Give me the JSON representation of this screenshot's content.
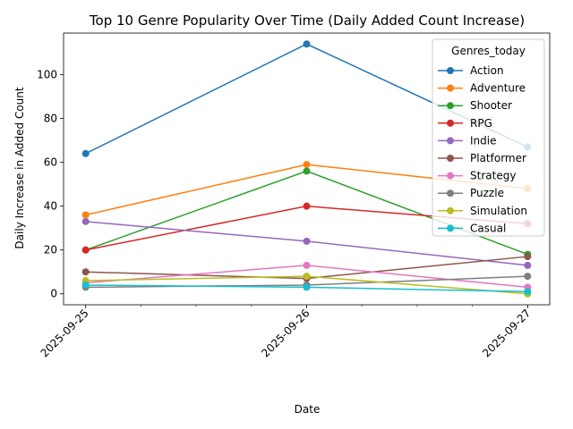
{
  "chart_data": {
    "type": "line",
    "title": "Top 10 Genre Popularity Over Time (Daily Added Count Increase)",
    "xlabel": "Date",
    "ylabel": "Daily Increase in Added Count",
    "x": [
      "2025-09-25",
      "2025-09-26",
      "2025-09-27"
    ],
    "ylim": [
      -5,
      119
    ],
    "yticks": [
      0,
      20,
      40,
      60,
      80,
      100
    ],
    "grid": false,
    "legend": {
      "title": "Genres_today",
      "placement": "top-right"
    },
    "series": [
      {
        "name": "Action",
        "color": "#1f77b4",
        "values": [
          64,
          114,
          67
        ]
      },
      {
        "name": "Adventure",
        "color": "#ff7f0e",
        "values": [
          36,
          59,
          48
        ]
      },
      {
        "name": "Shooter",
        "color": "#2ca02c",
        "values": [
          20,
          56,
          18
        ]
      },
      {
        "name": "RPG",
        "color": "#d62728",
        "values": [
          20,
          40,
          32
        ]
      },
      {
        "name": "Indie",
        "color": "#9467bd",
        "values": [
          33,
          24,
          13
        ]
      },
      {
        "name": "Platformer",
        "color": "#8c564b",
        "values": [
          10,
          7,
          17
        ]
      },
      {
        "name": "Strategy",
        "color": "#e377c2",
        "values": [
          5,
          13,
          3
        ]
      },
      {
        "name": "Puzzle",
        "color": "#7f7f7f",
        "values": [
          3,
          4,
          8
        ]
      },
      {
        "name": "Simulation",
        "color": "#bcbd22",
        "values": [
          6,
          8,
          0
        ]
      },
      {
        "name": "Casual",
        "color": "#17becf",
        "values": [
          4,
          3,
          1
        ]
      }
    ]
  }
}
